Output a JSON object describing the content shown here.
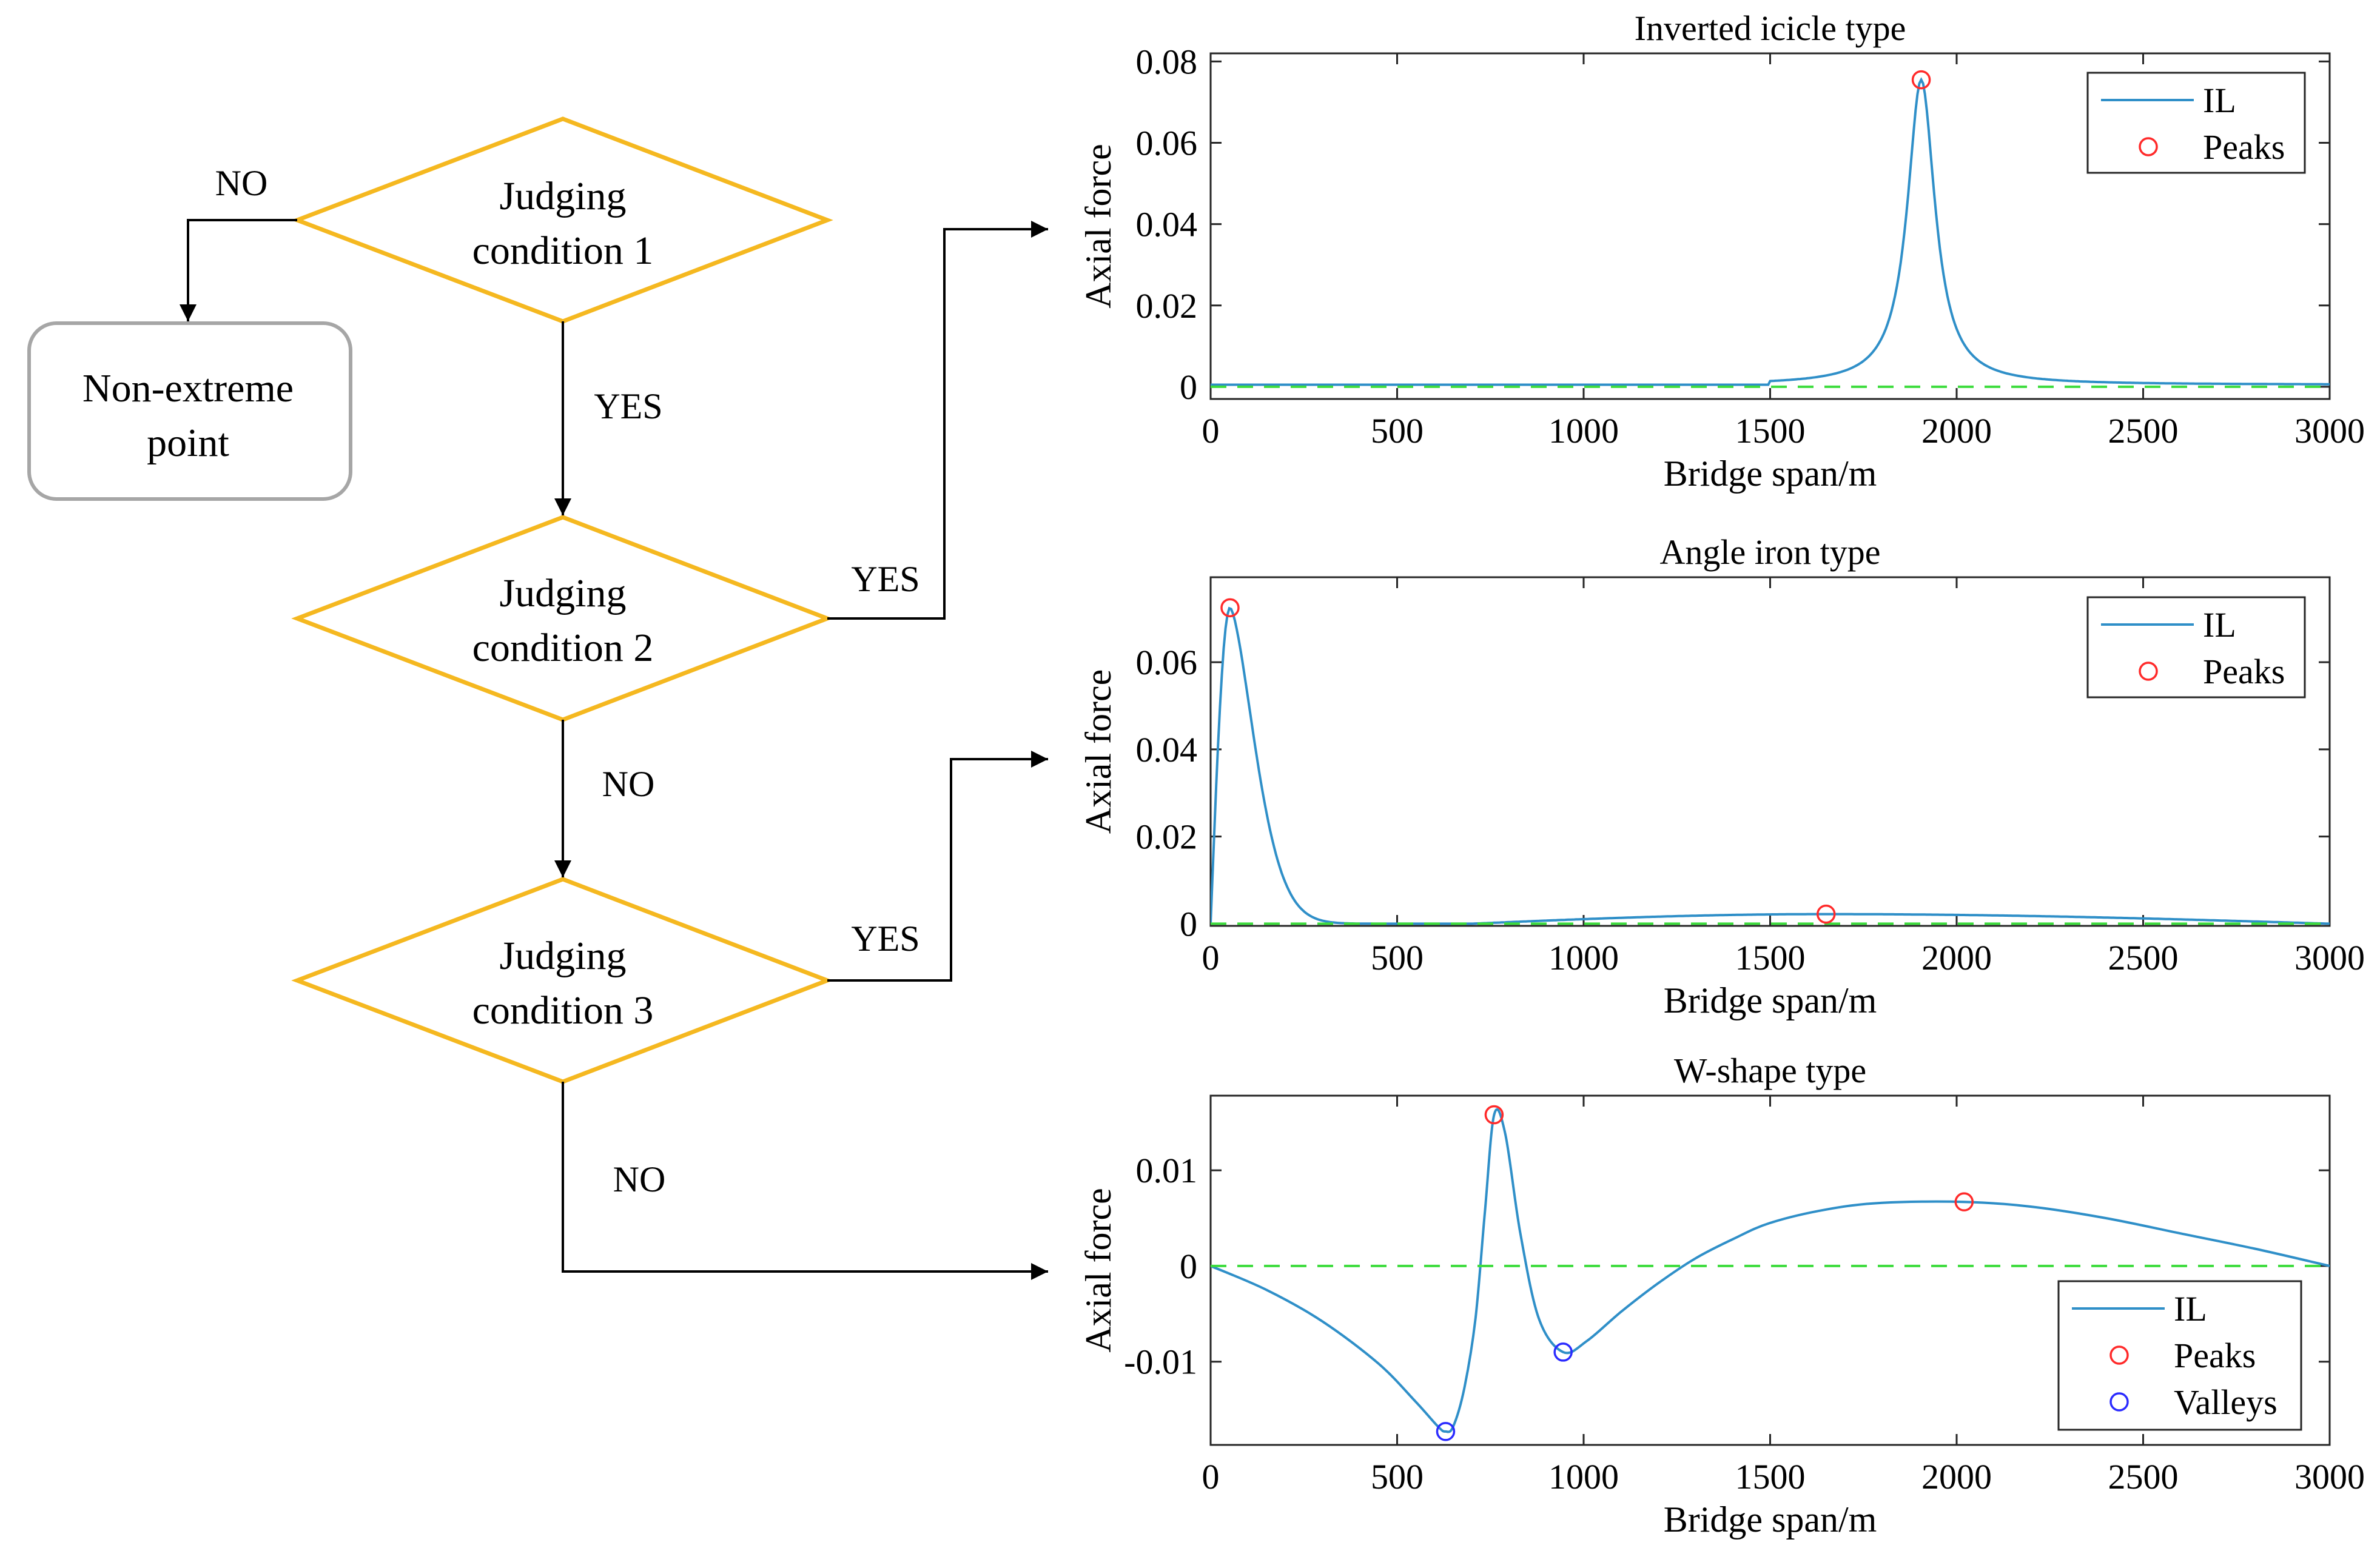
{
  "flowchart": {
    "nodes": [
      {
        "id": "cond1",
        "lines": [
          "Judging",
          "condition 1"
        ]
      },
      {
        "id": "cond2",
        "lines": [
          "Judging",
          "condition 2"
        ]
      },
      {
        "id": "cond3",
        "lines": [
          "Judging",
          "condition 3"
        ]
      },
      {
        "id": "nonext",
        "lines": [
          "Non-extreme",
          "point"
        ]
      }
    ],
    "edge_labels": {
      "c1_no": "NO",
      "c1_yes": "YES",
      "c2_yes": "YES",
      "c2_no": "NO",
      "c3_yes": "YES",
      "c3_no": "NO"
    },
    "colors": {
      "diamond": "#F5B820",
      "rounded_box": "#A6A6A6",
      "arrow": "#000000"
    }
  },
  "chart_data": [
    {
      "type": "line",
      "title": "Inverted icicle type",
      "xlabel": "Bridge span/m",
      "ylabel": "Axial force",
      "xlim": [
        0,
        3000
      ],
      "ylim": [
        -0.003,
        0.082
      ],
      "xticks": [
        0,
        500,
        1000,
        1500,
        2000,
        2500,
        3000
      ],
      "yticks": [
        0,
        0.02,
        0.04,
        0.06,
        0.08
      ],
      "ytick_labels": [
        "0",
        "0.02",
        "0.04",
        "0.06",
        "0.08"
      ],
      "series": [
        {
          "name": "IL",
          "color": "#2F8FC8",
          "shape": "icicle",
          "peak_x": 1905,
          "peak_y": 0.0755,
          "width": 45,
          "baseline": 0.0005
        },
        {
          "name": "zero",
          "color": "#3DDC3D",
          "dashed": true,
          "y": 0
        }
      ],
      "peaks": [
        [
          1905,
          0.0755
        ]
      ],
      "valleys": [],
      "legend": [
        "IL",
        "Peaks"
      ],
      "legend_position": "top-right"
    },
    {
      "type": "line",
      "title": "Angle iron type",
      "xlabel": "Bridge span/m",
      "ylabel": "Axial force",
      "xlim": [
        0,
        3000
      ],
      "ylim": [
        -0.0005,
        0.0795
      ],
      "xticks": [
        0,
        500,
        1000,
        1500,
        2000,
        2500,
        3000
      ],
      "yticks": [
        0,
        0.02,
        0.04,
        0.06
      ],
      "ytick_labels": [
        "0",
        "0.02",
        "0.04",
        "0.06"
      ],
      "series": [
        {
          "name": "IL",
          "color": "#2F8FC8",
          "shape": "angle",
          "peak_x": 52,
          "peak_y": 0.0725,
          "bump_x": 1650,
          "bump_y": 0.0022
        },
        {
          "name": "zero",
          "color": "#3DDC3D",
          "dashed": true,
          "y": 0
        }
      ],
      "peaks": [
        [
          52,
          0.0725
        ],
        [
          1650,
          0.0022
        ]
      ],
      "valleys": [],
      "legend": [
        "IL",
        "Peaks"
      ],
      "legend_position": "top-right"
    },
    {
      "type": "line",
      "title": "W-shape type",
      "xlabel": "Bridge span/m",
      "ylabel": "Axial force",
      "xlim": [
        0,
        3000
      ],
      "ylim": [
        -0.0187,
        0.0178
      ],
      "xticks": [
        0,
        500,
        1000,
        1500,
        2000,
        2500,
        3000
      ],
      "yticks": [
        -0.01,
        0,
        0.01
      ],
      "ytick_labels": [
        "-0.01",
        "0",
        "0.01"
      ],
      "series": [
        {
          "name": "IL",
          "color": "#2F8FC8",
          "shape": "points",
          "points": [
            [
              0,
              0
            ],
            [
              150,
              -0.0025
            ],
            [
              300,
              -0.0058
            ],
            [
              450,
              -0.0102
            ],
            [
              550,
              -0.0142
            ],
            [
              610,
              -0.0168
            ],
            [
              630,
              -0.0173
            ],
            [
              650,
              -0.0168
            ],
            [
              680,
              -0.0128
            ],
            [
              710,
              -0.0055
            ],
            [
              735,
              0.0055
            ],
            [
              760,
              0.0158
            ],
            [
              790,
              0.0138
            ],
            [
              830,
              0.0035
            ],
            [
              880,
              -0.0055
            ],
            [
              945,
              -0.009
            ],
            [
              1010,
              -0.0078
            ],
            [
              1100,
              -0.0048
            ],
            [
              1200,
              -0.0018
            ],
            [
              1300,
              0.0008
            ],
            [
              1400,
              0.0028
            ],
            [
              1500,
              0.0045
            ],
            [
              1650,
              0.0059
            ],
            [
              1800,
              0.0066
            ],
            [
              2020,
              0.0067
            ],
            [
              2200,
              0.0062
            ],
            [
              2400,
              0.005
            ],
            [
              2600,
              0.0034
            ],
            [
              2800,
              0.0018
            ],
            [
              3000,
              0
            ]
          ]
        },
        {
          "name": "zero",
          "color": "#3DDC3D",
          "dashed": true,
          "y": 0
        }
      ],
      "peaks": [
        [
          760,
          0.0158
        ],
        [
          2020,
          0.0067
        ]
      ],
      "valleys": [
        [
          630,
          -0.0173
        ],
        [
          945,
          -0.009
        ]
      ],
      "legend": [
        "IL",
        "Peaks",
        "Valleys"
      ],
      "legend_position": "bottom-right"
    }
  ]
}
